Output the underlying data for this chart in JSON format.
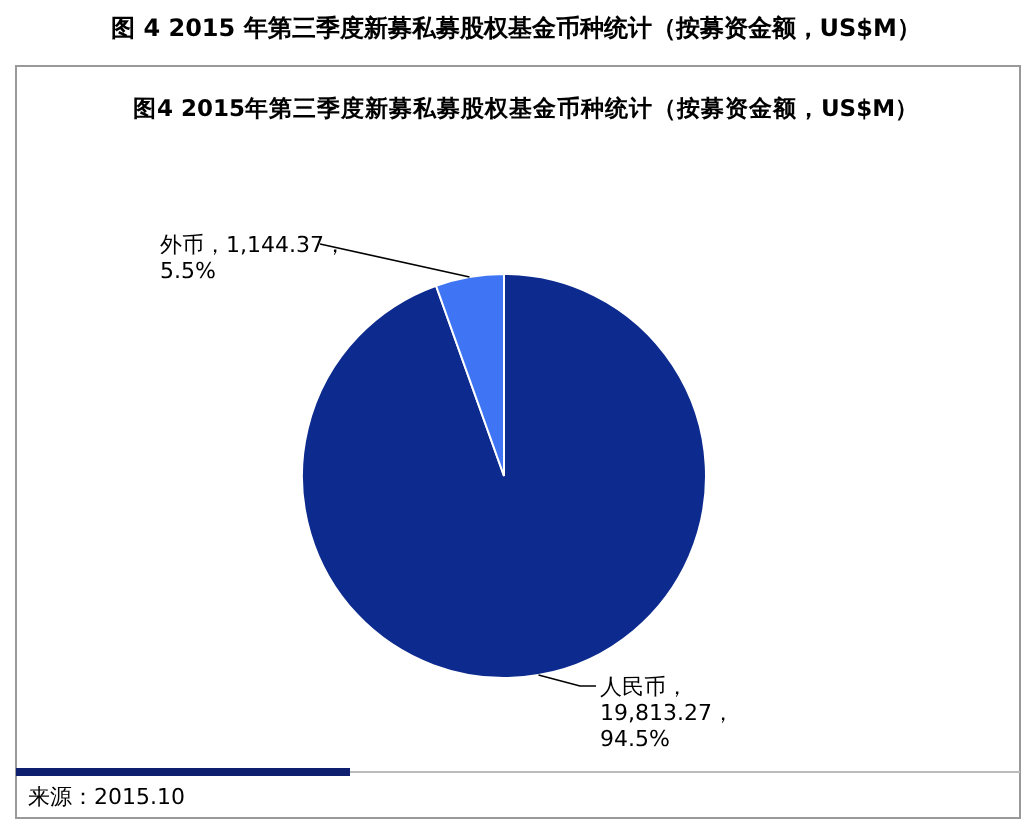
{
  "chart_data": {
    "type": "pie",
    "title": "图 4 2015 年第三季度新募私募股权基金币种统计（按募资金额，US$M）",
    "subtitle": "图4 2015年第三季度新募私募股权基金币种统计（按募资金额，US$M）",
    "categories": [
      "人民币",
      "外币"
    ],
    "values": [
      19813.27,
      1144.37
    ],
    "colors": [
      "#0d2b8e",
      "#3f75f5"
    ],
    "value_labels": [
      "，\n19,813.27，\n94.5%",
      "，1,144.37，\n5.5%"
    ],
    "annotations": [
      "来源：2015.10"
    ]
  }
}
